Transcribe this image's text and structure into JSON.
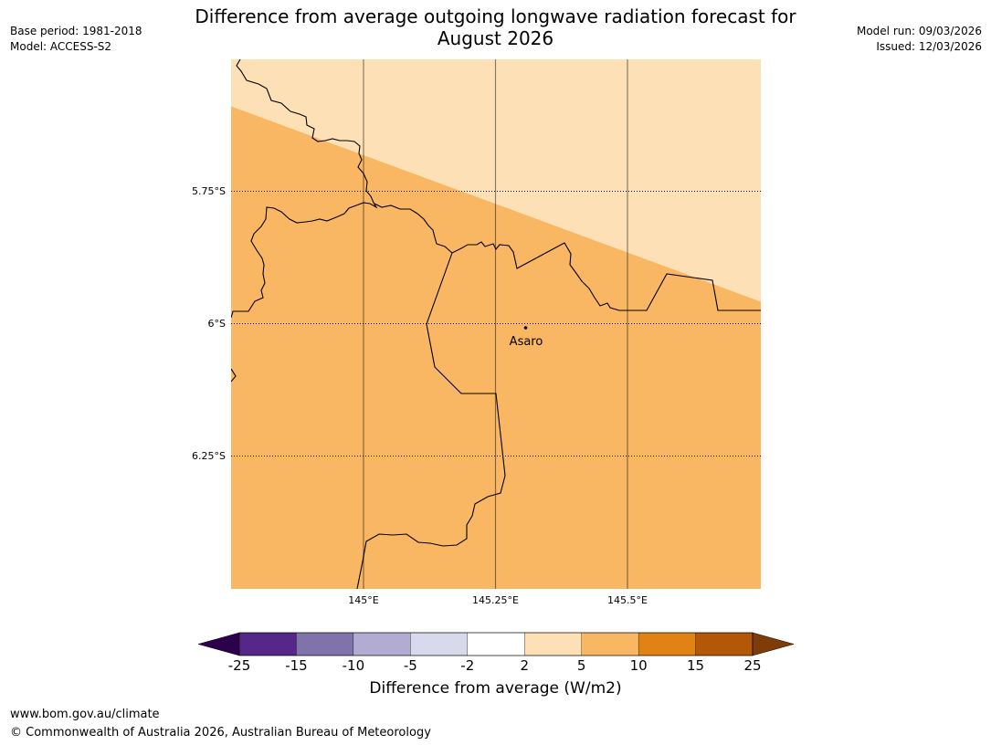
{
  "header": {
    "title_line1": "Difference from average outgoing longwave radiation forecast for",
    "title_line2": "August 2026",
    "base_period": "Base period: 1981-2018",
    "model": "Model: ACCESS-S2",
    "model_run": "Model run: 09/03/2026",
    "issued": "Issued: 12/03/2026"
  },
  "map": {
    "place_label": "Asaro",
    "lat_labels": [
      "5.75°S",
      "6°S",
      "6.25°S"
    ],
    "lon_labels": [
      "145°E",
      "145.25°E",
      "145.5°E"
    ],
    "colors": {
      "category_2_5": "#fde0b6",
      "category_5_10": "#fab763",
      "border": "#000000",
      "gridline": "#000000"
    }
  },
  "colorbar": {
    "title": "Difference from average (W/m2)",
    "ticks": [
      "-25",
      "-15",
      "-10",
      "-5",
      "-2",
      "2",
      "5",
      "10",
      "15",
      "25"
    ],
    "under_color": "#2d004b",
    "over_color": "#7f3b08",
    "bins": [
      {
        "from": "-25",
        "to": "-15",
        "color": "#542788"
      },
      {
        "from": "-15",
        "to": "-10",
        "color": "#8073ac"
      },
      {
        "from": "-10",
        "to": "-5",
        "color": "#b2abd2"
      },
      {
        "from": "-5",
        "to": "-2",
        "color": "#d8daeb"
      },
      {
        "from": "-2",
        "to": "2",
        "color": "#ffffff"
      },
      {
        "from": "2",
        "to": "5",
        "color": "#fde0b6"
      },
      {
        "from": "5",
        "to": "10",
        "color": "#fab763"
      },
      {
        "from": "10",
        "to": "15",
        "color": "#e08214"
      },
      {
        "from": "15",
        "to": "25",
        "color": "#b35806"
      }
    ]
  },
  "footer": {
    "url": "www.bom.gov.au/climate",
    "copyright": "© Commonwealth of Australia 2026, Australian Bureau of Meteorology"
  }
}
